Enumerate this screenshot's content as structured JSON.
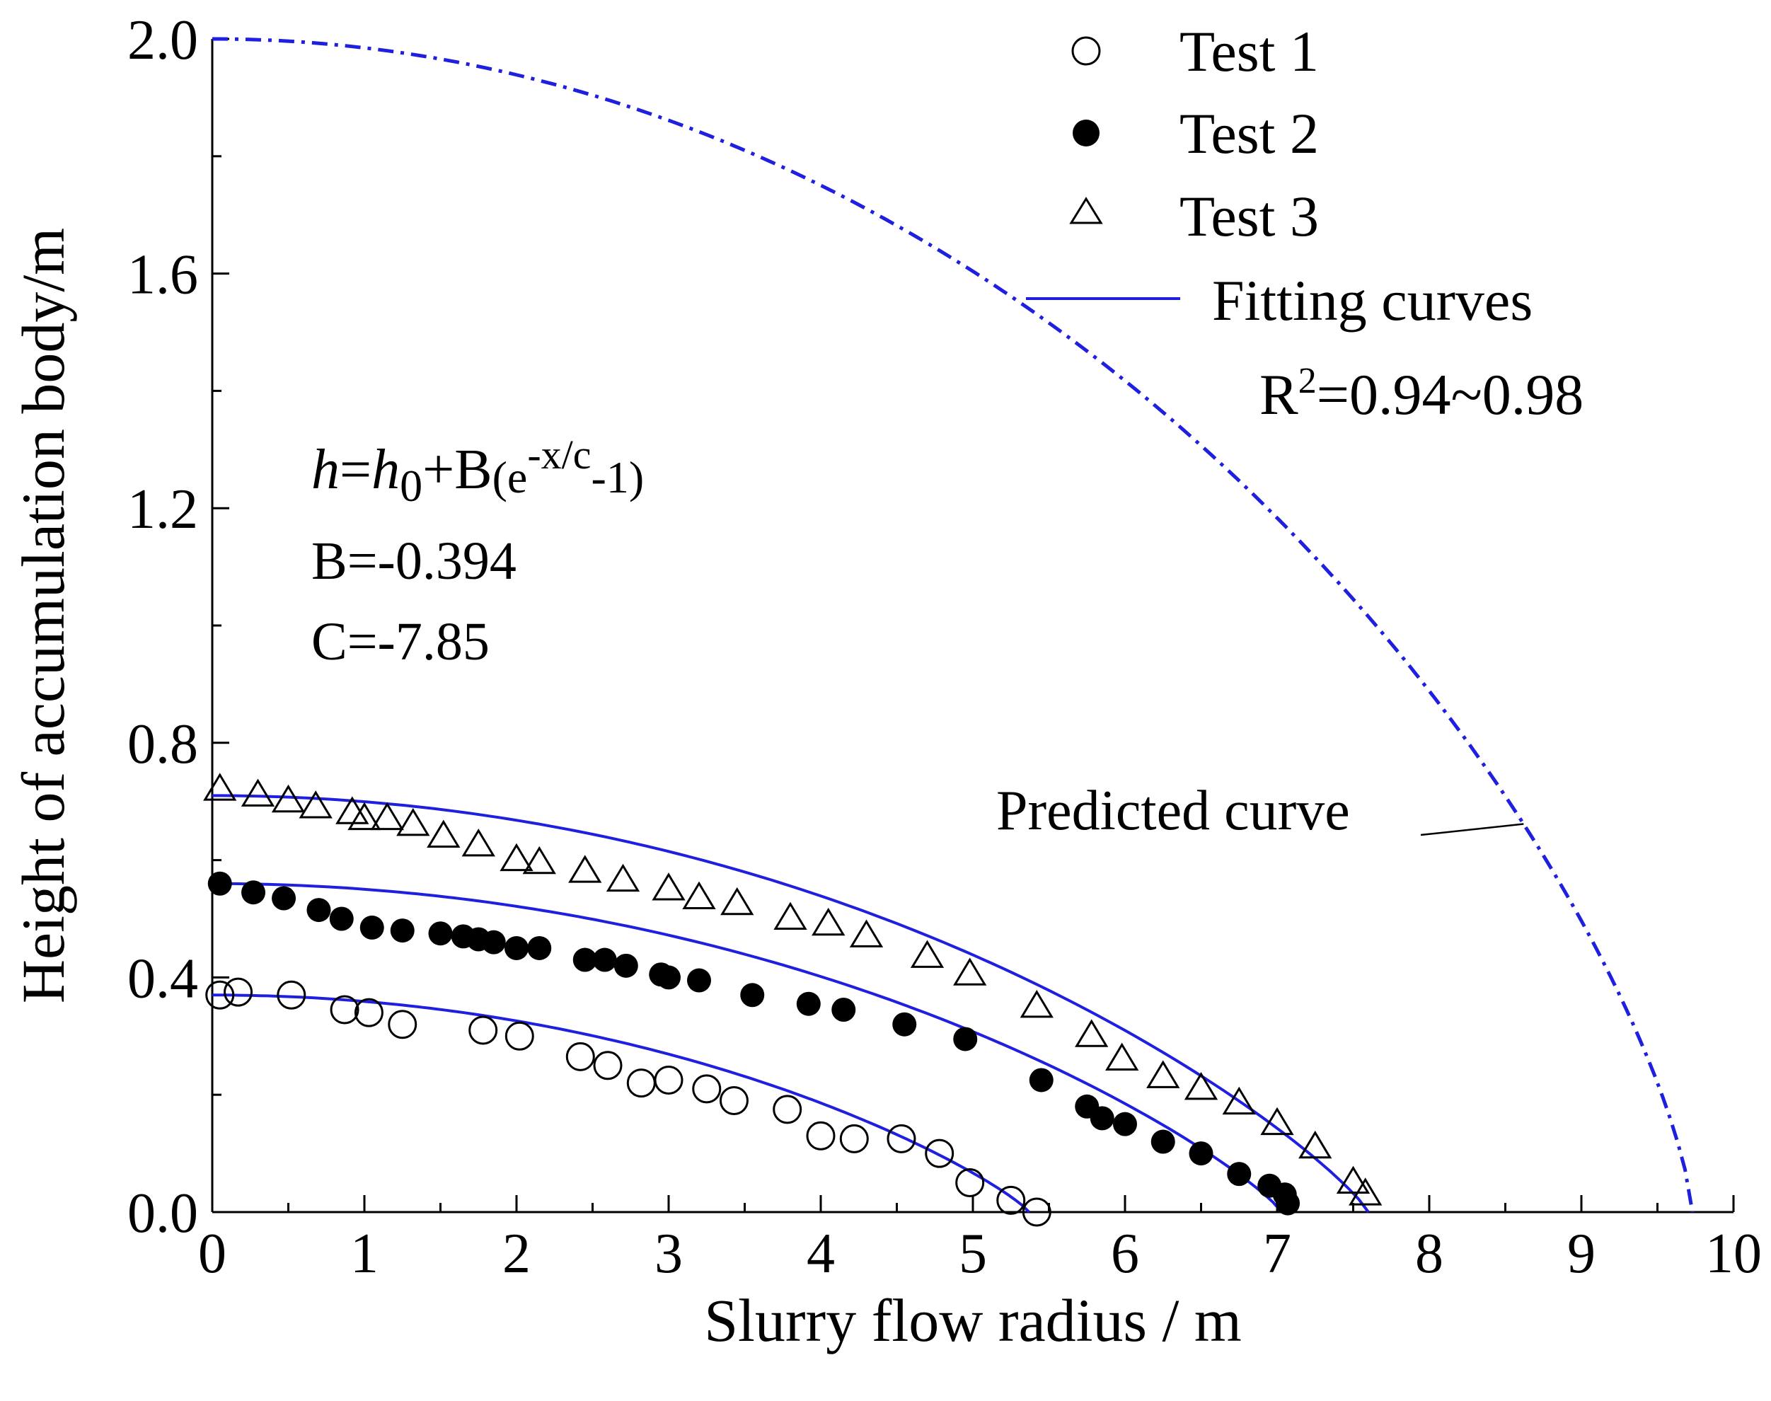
{
  "chart_data": {
    "type": "scatter",
    "xlabel": "Slurry flow radius / m",
    "ylabel": "Height of accumulation body/m",
    "xlim": [
      0,
      10
    ],
    "ylim": [
      0,
      2.0
    ],
    "xticks": [
      0,
      1,
      2,
      3,
      4,
      5,
      6,
      7,
      8,
      9,
      10
    ],
    "yticks": [
      0.0,
      0.4,
      0.8,
      1.2,
      1.6,
      2.0
    ],
    "xtick_labels": [
      "0",
      "1",
      "2",
      "3",
      "4",
      "5",
      "6",
      "7",
      "8",
      "9",
      "10"
    ],
    "ytick_labels": [
      "0.0",
      "0.4",
      "0.8",
      "1.2",
      "1.6",
      "2.0"
    ],
    "legend": {
      "position": "top-right",
      "entries": [
        "Test 1",
        "Test 2",
        "Test 3",
        "Fitting curves"
      ],
      "r2_prefix": "R",
      "r2_exp": "2",
      "r2_value": "=0.94~0.98"
    },
    "annotations": {
      "eq_h": "h",
      "eq_eq": "=",
      "eq_h0": "h",
      "eq_sub0": "0",
      "eq_mid": "+B",
      "eq_paren_open": "(e",
      "eq_exp": "-x/c",
      "eq_tail": "-1)",
      "b_value": "B=-0.394",
      "c_value": "C=-7.85",
      "predicted_label": "Predicted curve"
    },
    "series": [
      {
        "name": "Test 1",
        "marker": "open-circle",
        "points": [
          [
            0.05,
            0.37
          ],
          [
            0.17,
            0.375
          ],
          [
            0.52,
            0.37
          ],
          [
            0.87,
            0.345
          ],
          [
            1.03,
            0.34
          ],
          [
            1.25,
            0.32
          ],
          [
            1.78,
            0.31
          ],
          [
            2.02,
            0.3
          ],
          [
            2.42,
            0.265
          ],
          [
            2.6,
            0.25
          ],
          [
            2.82,
            0.22
          ],
          [
            3.0,
            0.225
          ],
          [
            3.25,
            0.21
          ],
          [
            3.43,
            0.19
          ],
          [
            3.78,
            0.175
          ],
          [
            4.0,
            0.13
          ],
          [
            4.22,
            0.125
          ],
          [
            4.53,
            0.125
          ],
          [
            4.78,
            0.1
          ],
          [
            4.98,
            0.05
          ],
          [
            5.25,
            0.02
          ],
          [
            5.42,
            0.0
          ]
        ]
      },
      {
        "name": "Test 2",
        "marker": "filled-circle",
        "points": [
          [
            0.05,
            0.56
          ],
          [
            0.27,
            0.545
          ],
          [
            0.47,
            0.535
          ],
          [
            0.7,
            0.515
          ],
          [
            0.85,
            0.5
          ],
          [
            1.05,
            0.485
          ],
          [
            1.25,
            0.48
          ],
          [
            1.5,
            0.475
          ],
          [
            1.65,
            0.47
          ],
          [
            1.75,
            0.465
          ],
          [
            1.85,
            0.46
          ],
          [
            2.0,
            0.45
          ],
          [
            2.15,
            0.45
          ],
          [
            2.45,
            0.43
          ],
          [
            2.58,
            0.43
          ],
          [
            2.72,
            0.42
          ],
          [
            2.95,
            0.405
          ],
          [
            3.0,
            0.4
          ],
          [
            3.2,
            0.395
          ],
          [
            3.55,
            0.37
          ],
          [
            3.92,
            0.355
          ],
          [
            4.15,
            0.345
          ],
          [
            4.55,
            0.32
          ],
          [
            4.95,
            0.295
          ],
          [
            5.45,
            0.225
          ],
          [
            5.75,
            0.18
          ],
          [
            5.85,
            0.16
          ],
          [
            6.0,
            0.15
          ],
          [
            6.25,
            0.12
          ],
          [
            6.5,
            0.1
          ],
          [
            6.75,
            0.065
          ],
          [
            6.95,
            0.045
          ],
          [
            7.05,
            0.03
          ],
          [
            7.07,
            0.015
          ]
        ]
      },
      {
        "name": "Test 3",
        "marker": "open-triangle",
        "points": [
          [
            0.05,
            0.72
          ],
          [
            0.3,
            0.71
          ],
          [
            0.5,
            0.7
          ],
          [
            0.68,
            0.69
          ],
          [
            0.92,
            0.68
          ],
          [
            1.0,
            0.67
          ],
          [
            1.15,
            0.67
          ],
          [
            1.32,
            0.66
          ],
          [
            1.52,
            0.64
          ],
          [
            1.75,
            0.625
          ],
          [
            2.0,
            0.6
          ],
          [
            2.15,
            0.595
          ],
          [
            2.45,
            0.58
          ],
          [
            2.7,
            0.565
          ],
          [
            3.0,
            0.55
          ],
          [
            3.2,
            0.535
          ],
          [
            3.45,
            0.525
          ],
          [
            3.8,
            0.5
          ],
          [
            4.05,
            0.49
          ],
          [
            4.3,
            0.47
          ],
          [
            4.7,
            0.435
          ],
          [
            4.98,
            0.405
          ],
          [
            5.42,
            0.35
          ],
          [
            5.78,
            0.3
          ],
          [
            5.98,
            0.26
          ],
          [
            6.25,
            0.23
          ],
          [
            6.5,
            0.21
          ],
          [
            6.75,
            0.185
          ],
          [
            7.0,
            0.15
          ],
          [
            7.25,
            0.11
          ],
          [
            7.5,
            0.05
          ],
          [
            7.58,
            0.03
          ]
        ]
      }
    ],
    "fits": [
      {
        "name": "Test 1 fit",
        "h0": 0.37,
        "x_end": 5.37
      },
      {
        "name": "Test 2 fit",
        "h0": 0.56,
        "x_end": 7.03
      },
      {
        "name": "Test 3 fit",
        "h0": 0.71,
        "x_end": 7.6
      }
    ],
    "predicted": {
      "h0": 2.0,
      "x_end": 9.73,
      "pointer_at_x": 8.62
    }
  }
}
